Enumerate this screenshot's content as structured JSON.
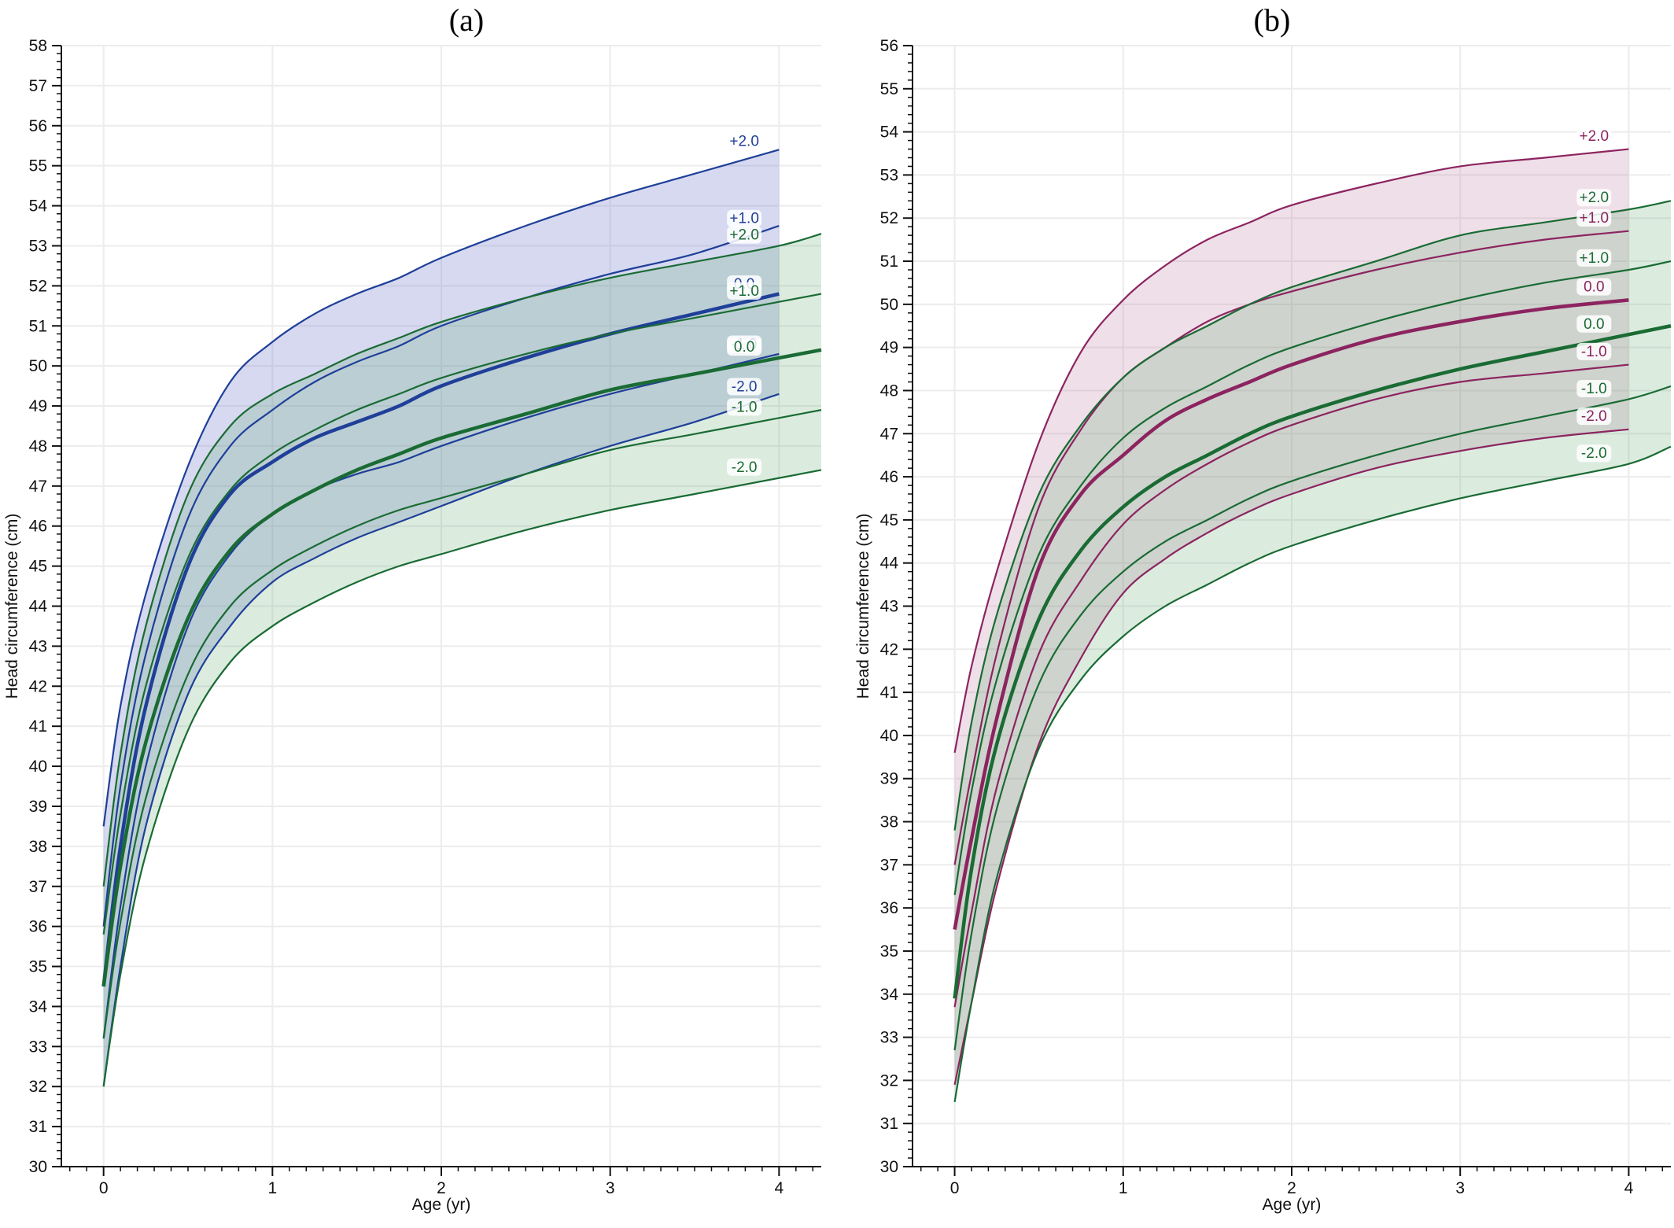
{
  "panels": [
    {
      "id": "a",
      "title": "(a)",
      "xlabel": "Age (yr)",
      "ylabel": "Head circumference (cm)"
    },
    {
      "id": "b",
      "title": "(b)",
      "xlabel": "Age (yr)",
      "ylabel": "Head circumference (cm)"
    }
  ],
  "chart_data": [
    {
      "type": "line",
      "title": "(a)",
      "xlabel": "Age (yr)",
      "ylabel": "Head circumference (cm)",
      "xlim": [
        -0.25,
        4.25
      ],
      "ylim": [
        30,
        58
      ],
      "xticks": [
        0,
        1,
        2,
        3,
        4
      ],
      "yticks": [
        30,
        31,
        32,
        33,
        34,
        35,
        36,
        37,
        38,
        39,
        40,
        41,
        42,
        43,
        44,
        45,
        46,
        47,
        48,
        49,
        50,
        51,
        52,
        53,
        54,
        55,
        56,
        57,
        58
      ],
      "grid": true,
      "series": [
        {
          "name": "+2.0",
          "color": "#1f3f99",
          "role": "upper",
          "x": [
            0,
            0.1,
            0.25,
            0.5,
            0.75,
            1,
            1.25,
            1.5,
            1.75,
            2,
            2.5,
            3,
            3.5,
            4
          ],
          "y": [
            38.5,
            41.5,
            44.3,
            47.5,
            49.6,
            50.6,
            51.3,
            51.8,
            52.2,
            52.7,
            53.5,
            54.2,
            54.8,
            55.4
          ]
        },
        {
          "name": "+1.0",
          "color": "#1f3f99",
          "role": "band",
          "x": [
            0,
            0.1,
            0.25,
            0.5,
            0.75,
            1,
            1.25,
            1.5,
            1.75,
            2,
            2.5,
            3,
            3.5,
            4
          ],
          "y": [
            36.0,
            39.5,
            42.8,
            46.2,
            48.0,
            48.9,
            49.6,
            50.1,
            50.5,
            51.0,
            51.7,
            52.3,
            52.8,
            53.5
          ]
        },
        {
          "name": "0.0",
          "color": "#1f3f99",
          "role": "median",
          "x": [
            0,
            0.1,
            0.25,
            0.5,
            0.75,
            1,
            1.25,
            1.5,
            1.75,
            2,
            2.5,
            3,
            3.5,
            4
          ],
          "y": [
            34.5,
            38.0,
            41.5,
            45.0,
            46.8,
            47.6,
            48.2,
            48.6,
            49.0,
            49.5,
            50.2,
            50.8,
            51.3,
            51.8
          ]
        },
        {
          "name": "-1.0",
          "color": "#1f3f99",
          "role": "band",
          "x": [
            0,
            0.1,
            0.25,
            0.5,
            0.75,
            1,
            1.25,
            1.5,
            1.75,
            2,
            2.5,
            3,
            3.5,
            4
          ],
          "y": [
            33.2,
            36.5,
            40.0,
            43.5,
            45.3,
            46.3,
            46.9,
            47.3,
            47.6,
            48.0,
            48.7,
            49.3,
            49.8,
            50.3
          ]
        },
        {
          "name": "-2.0",
          "color": "#1f3f99",
          "role": "lower",
          "x": [
            0,
            0.1,
            0.25,
            0.5,
            0.75,
            1,
            1.25,
            1.5,
            1.75,
            2,
            2.5,
            3,
            3.5,
            4
          ],
          "y": [
            32.0,
            35.0,
            38.5,
            41.8,
            43.5,
            44.6,
            45.2,
            45.7,
            46.1,
            46.5,
            47.3,
            48.0,
            48.6,
            49.3
          ]
        },
        {
          "name": "+2.0",
          "color": "#1a6b34",
          "role": "upper",
          "x": [
            0,
            0.1,
            0.25,
            0.5,
            0.75,
            1,
            1.25,
            1.5,
            1.75,
            2,
            2.5,
            3,
            3.5,
            4,
            4.25
          ],
          "y": [
            37.0,
            40.3,
            43.5,
            46.8,
            48.5,
            49.3,
            49.8,
            50.3,
            50.7,
            51.1,
            51.7,
            52.2,
            52.6,
            53.0,
            53.3
          ]
        },
        {
          "name": "+1.0",
          "color": "#1a6b34",
          "role": "band",
          "x": [
            0,
            0.1,
            0.25,
            0.5,
            0.75,
            1,
            1.25,
            1.5,
            1.75,
            2,
            2.5,
            3,
            3.5,
            4,
            4.25
          ],
          "y": [
            35.8,
            38.8,
            42.0,
            45.2,
            46.9,
            47.8,
            48.4,
            48.9,
            49.3,
            49.7,
            50.3,
            50.8,
            51.2,
            51.6,
            51.8
          ]
        },
        {
          "name": "0.0",
          "color": "#1a6b34",
          "role": "median",
          "x": [
            0,
            0.1,
            0.25,
            0.5,
            0.75,
            1,
            1.25,
            1.5,
            1.75,
            2,
            2.5,
            3,
            3.5,
            4,
            4.25
          ],
          "y": [
            34.5,
            37.5,
            40.6,
            43.7,
            45.4,
            46.3,
            46.9,
            47.4,
            47.8,
            48.2,
            48.8,
            49.4,
            49.8,
            50.2,
            50.4
          ]
        },
        {
          "name": "-1.0",
          "color": "#1a6b34",
          "role": "band",
          "x": [
            0,
            0.1,
            0.25,
            0.5,
            0.75,
            1,
            1.25,
            1.5,
            1.75,
            2,
            2.5,
            3,
            3.5,
            4,
            4.25
          ],
          "y": [
            33.2,
            36.1,
            39.2,
            42.3,
            44.0,
            44.9,
            45.5,
            46.0,
            46.4,
            46.7,
            47.3,
            47.9,
            48.3,
            48.7,
            48.9
          ]
        },
        {
          "name": "-2.0",
          "color": "#1a6b34",
          "role": "lower",
          "x": [
            0,
            0.1,
            0.25,
            0.5,
            0.75,
            1,
            1.25,
            1.5,
            1.75,
            2,
            2.5,
            3,
            3.5,
            4,
            4.25
          ],
          "y": [
            32.0,
            34.8,
            37.8,
            40.9,
            42.6,
            43.5,
            44.1,
            44.6,
            45.0,
            45.3,
            45.9,
            46.4,
            46.8,
            47.2,
            47.4
          ]
        }
      ]
    },
    {
      "type": "line",
      "title": "(b)",
      "xlabel": "Age (yr)",
      "ylabel": "Head circumference (cm)",
      "xlim": [
        -0.25,
        4.25
      ],
      "ylim": [
        30,
        56
      ],
      "xticks": [
        0,
        1,
        2,
        3,
        4
      ],
      "yticks": [
        30,
        31,
        32,
        33,
        34,
        35,
        36,
        37,
        38,
        39,
        40,
        41,
        42,
        43,
        44,
        45,
        46,
        47,
        48,
        49,
        50,
        51,
        52,
        53,
        54,
        55,
        56
      ],
      "grid": true,
      "series": [
        {
          "name": "+2.0",
          "color": "#8c2460",
          "role": "upper",
          "x": [
            0,
            0.1,
            0.25,
            0.5,
            0.75,
            1,
            1.25,
            1.5,
            1.75,
            2,
            2.5,
            3,
            3.5,
            4
          ],
          "y": [
            39.6,
            41.6,
            43.8,
            46.8,
            48.9,
            50.1,
            50.9,
            51.5,
            51.9,
            52.3,
            52.8,
            53.2,
            53.4,
            53.6
          ]
        },
        {
          "name": "+1.0",
          "color": "#8c2460",
          "role": "band",
          "x": [
            0,
            0.1,
            0.25,
            0.5,
            0.75,
            1,
            1.25,
            1.5,
            1.75,
            2,
            2.5,
            3,
            3.5,
            4
          ],
          "y": [
            37.0,
            39.1,
            41.9,
            45.3,
            47.1,
            48.3,
            49.0,
            49.6,
            50.0,
            50.3,
            50.8,
            51.2,
            51.5,
            51.7
          ]
        },
        {
          "name": "0.0",
          "color": "#8c2460",
          "role": "median",
          "x": [
            0,
            0.1,
            0.25,
            0.5,
            0.75,
            1,
            1.25,
            1.5,
            1.75,
            2,
            2.5,
            3,
            3.5,
            4
          ],
          "y": [
            35.5,
            37.6,
            40.4,
            43.9,
            45.6,
            46.5,
            47.3,
            47.8,
            48.2,
            48.6,
            49.2,
            49.6,
            49.9,
            50.1
          ]
        },
        {
          "name": "-1.0",
          "color": "#8c2460",
          "role": "band",
          "x": [
            0,
            0.1,
            0.25,
            0.5,
            0.75,
            1,
            1.25,
            1.5,
            1.75,
            2,
            2.5,
            3,
            3.5,
            4
          ],
          "y": [
            33.7,
            35.9,
            38.8,
            41.9,
            43.6,
            44.9,
            45.7,
            46.3,
            46.8,
            47.2,
            47.8,
            48.2,
            48.4,
            48.6
          ]
        },
        {
          "name": "-2.0",
          "color": "#8c2460",
          "role": "lower",
          "x": [
            0,
            0.1,
            0.25,
            0.5,
            0.75,
            1,
            1.25,
            1.5,
            1.75,
            2,
            2.5,
            3,
            3.5,
            4
          ],
          "y": [
            31.9,
            33.8,
            36.5,
            39.8,
            41.8,
            43.3,
            44.1,
            44.7,
            45.2,
            45.6,
            46.2,
            46.6,
            46.9,
            47.1
          ]
        },
        {
          "name": "+2.0",
          "color": "#1a6b34",
          "role": "upper",
          "x": [
            0,
            0.1,
            0.25,
            0.5,
            0.75,
            1,
            1.25,
            1.5,
            1.75,
            2,
            2.5,
            3,
            3.5,
            4,
            4.25
          ],
          "y": [
            37.8,
            40.3,
            42.8,
            45.6,
            47.2,
            48.3,
            49.0,
            49.5,
            50.0,
            50.4,
            51.0,
            51.6,
            51.9,
            52.2,
            52.4
          ]
        },
        {
          "name": "+1.0",
          "color": "#1a6b34",
          "role": "band",
          "x": [
            0,
            0.1,
            0.25,
            0.5,
            0.75,
            1,
            1.25,
            1.5,
            1.75,
            2,
            2.5,
            3,
            3.5,
            4,
            4.25
          ],
          "y": [
            36.3,
            38.7,
            41.3,
            44.2,
            45.8,
            46.9,
            47.6,
            48.1,
            48.6,
            49.0,
            49.6,
            50.1,
            50.5,
            50.8,
            51.0
          ]
        },
        {
          "name": "0.0",
          "color": "#1a6b34",
          "role": "median",
          "x": [
            0,
            0.1,
            0.25,
            0.5,
            0.75,
            1,
            1.25,
            1.5,
            1.75,
            2,
            2.5,
            3,
            3.5,
            4,
            4.25
          ],
          "y": [
            33.9,
            36.9,
            39.8,
            42.7,
            44.3,
            45.3,
            46.0,
            46.5,
            47.0,
            47.4,
            48.0,
            48.5,
            48.9,
            49.3,
            49.5
          ]
        },
        {
          "name": "-1.0",
          "color": "#1a6b34",
          "role": "band",
          "x": [
            0,
            0.1,
            0.25,
            0.5,
            0.75,
            1,
            1.25,
            1.5,
            1.75,
            2,
            2.5,
            3,
            3.5,
            4,
            4.25
          ],
          "y": [
            32.7,
            35.4,
            38.3,
            41.2,
            42.8,
            43.8,
            44.5,
            45.0,
            45.5,
            45.9,
            46.5,
            47.0,
            47.4,
            47.8,
            48.1
          ]
        },
        {
          "name": "-2.0",
          "color": "#1a6b34",
          "role": "lower",
          "x": [
            0,
            0.1,
            0.25,
            0.5,
            0.75,
            1,
            1.25,
            1.5,
            1.75,
            2,
            2.5,
            3,
            3.5,
            4,
            4.25
          ],
          "y": [
            31.5,
            33.8,
            36.7,
            39.7,
            41.3,
            42.3,
            43.0,
            43.5,
            44.0,
            44.4,
            45.0,
            45.5,
            45.9,
            46.3,
            46.7
          ]
        }
      ]
    }
  ],
  "colors": {
    "blue": "#1f3f99",
    "green": "#1a6b34",
    "magenta": "#8c2460",
    "grid": "#ececec",
    "axis": "#111111"
  }
}
